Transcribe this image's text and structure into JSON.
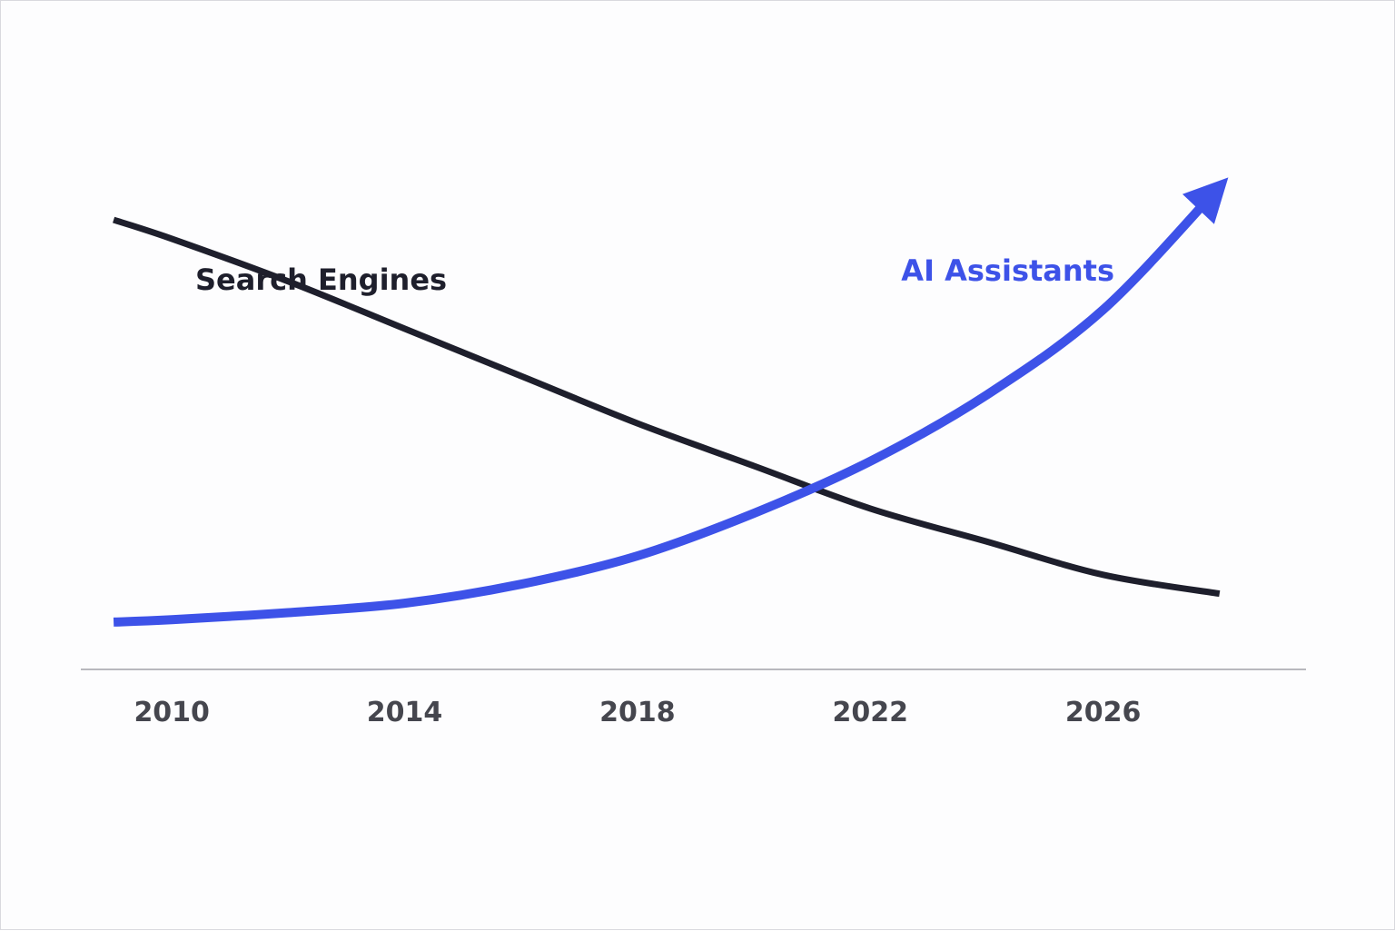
{
  "chart_data": {
    "type": "line",
    "title": "",
    "xlabel": "",
    "ylabel": "",
    "x": [
      2009,
      2010,
      2012,
      2014,
      2016,
      2018,
      2020,
      2022,
      2024,
      2026,
      2028
    ],
    "xlim": [
      2008,
      2030
    ],
    "ylim": [
      0,
      100
    ],
    "x_ticks": [
      2010,
      2014,
      2018,
      2022,
      2026
    ],
    "x_tick_labels": [
      "2010",
      "2014",
      "2018",
      "2022",
      "2026"
    ],
    "grid": false,
    "legend": "inline labels",
    "series": [
      {
        "name": "Search Engines",
        "color": "#1e1f2c",
        "values": [
          95,
          91,
          82,
          72,
          62,
          52,
          43,
          34,
          27,
          20,
          16
        ]
      },
      {
        "name": "AI Assistants",
        "color": "#3d52e8",
        "values": [
          10,
          10.5,
          12,
          14,
          18,
          24,
          33,
          44,
          58,
          76,
          102
        ],
        "arrow_end": true
      }
    ]
  }
}
